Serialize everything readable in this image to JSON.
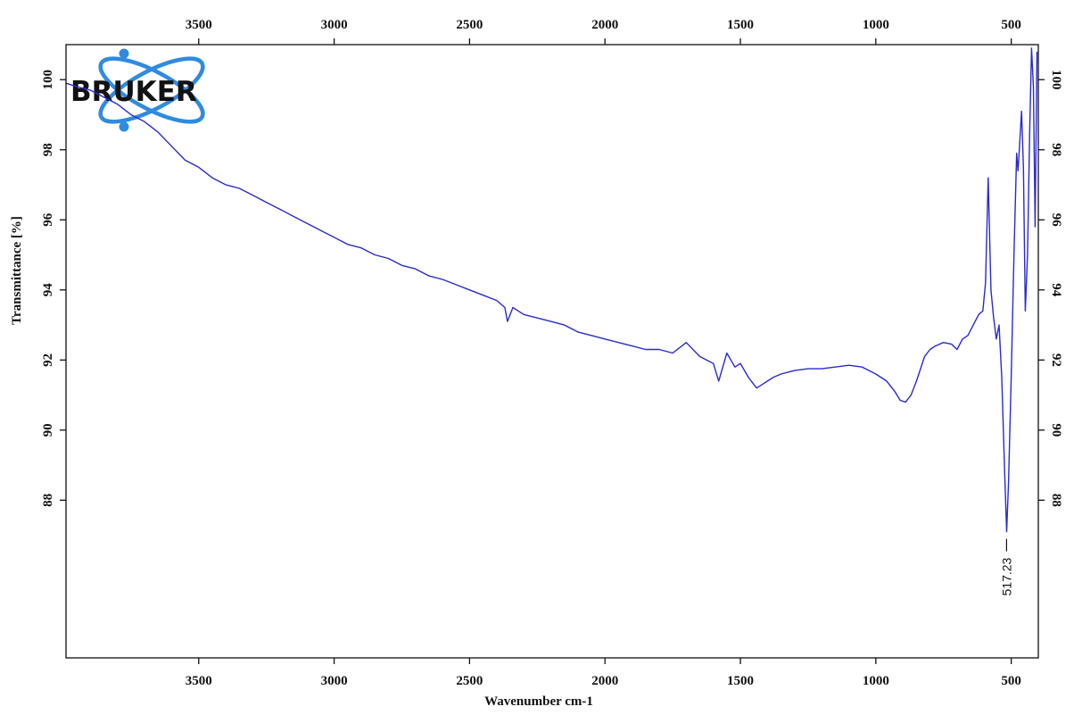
{
  "chart_data": {
    "type": "line",
    "title": "",
    "xlabel": "Wavenumber cm-1",
    "ylabel": "Transmittance [%]",
    "xlim": [
      3990,
      400
    ],
    "ylim": [
      83.5,
      101
    ],
    "x_reversed": true,
    "x_ticks": [
      3500,
      3000,
      2500,
      2000,
      1500,
      1000,
      500
    ],
    "y_ticks": [
      88,
      90,
      92,
      94,
      96,
      98,
      100
    ],
    "grid": false,
    "line_color": "#2a2ad0",
    "series": [
      {
        "x": [
          3990,
          3950,
          3900,
          3850,
          3800,
          3750,
          3700,
          3650,
          3600,
          3550,
          3500,
          3450,
          3400,
          3350,
          3300,
          3250,
          3200,
          3150,
          3100,
          3050,
          3000,
          2950,
          2900,
          2850,
          2800,
          2750,
          2700,
          2650,
          2600,
          2550,
          2500,
          2450,
          2400,
          2370,
          2360,
          2340,
          2300,
          2250,
          2200,
          2150,
          2100,
          2050,
          2000,
          1950,
          1900,
          1850,
          1800,
          1750,
          1700,
          1650,
          1600,
          1580,
          1550,
          1520,
          1500,
          1470,
          1440,
          1420,
          1400,
          1380,
          1350,
          1300,
          1250,
          1200,
          1150,
          1100,
          1050,
          1000,
          960,
          930,
          910,
          890,
          870,
          850,
          820,
          800,
          780,
          750,
          720,
          700,
          680,
          660,
          640,
          620,
          605,
          595,
          585,
          575,
          565,
          555,
          545,
          535,
          525,
          517,
          510,
          500,
          490,
          480,
          475,
          470,
          462,
          455,
          448,
          440,
          432,
          425,
          418,
          412,
          405
        ],
        "y": [
          99.9,
          99.8,
          99.7,
          99.5,
          99.3,
          99.0,
          98.8,
          98.5,
          98.1,
          97.7,
          97.5,
          97.2,
          97.0,
          96.9,
          96.7,
          96.5,
          96.3,
          96.1,
          95.9,
          95.7,
          95.5,
          95.3,
          95.2,
          95.0,
          94.9,
          94.7,
          94.6,
          94.4,
          94.3,
          94.15,
          94.0,
          93.85,
          93.7,
          93.5,
          93.1,
          93.5,
          93.3,
          93.2,
          93.1,
          93.0,
          92.8,
          92.7,
          92.6,
          92.5,
          92.4,
          92.3,
          92.3,
          92.2,
          92.5,
          92.1,
          91.9,
          91.4,
          92.2,
          91.8,
          91.9,
          91.5,
          91.2,
          91.3,
          91.4,
          91.5,
          91.6,
          91.7,
          91.75,
          91.75,
          91.8,
          91.85,
          91.8,
          91.6,
          91.4,
          91.1,
          90.85,
          90.8,
          91.0,
          91.4,
          92.1,
          92.3,
          92.4,
          92.5,
          92.45,
          92.3,
          92.6,
          92.7,
          93.0,
          93.3,
          93.4,
          94.2,
          97.2,
          94.0,
          93.2,
          92.6,
          93.0,
          91.5,
          89.0,
          87.1,
          88.5,
          91.5,
          95.0,
          97.9,
          97.4,
          98.0,
          99.1,
          97.5,
          93.4,
          95.0,
          98.5,
          100.9,
          99.8,
          95.8,
          100.8
        ]
      }
    ],
    "annotations": [
      {
        "text": "517.23",
        "x": 517.23,
        "y": 87.1
      }
    ]
  },
  "logo": {
    "text": "BRUKER",
    "color": "#2f8be0"
  }
}
